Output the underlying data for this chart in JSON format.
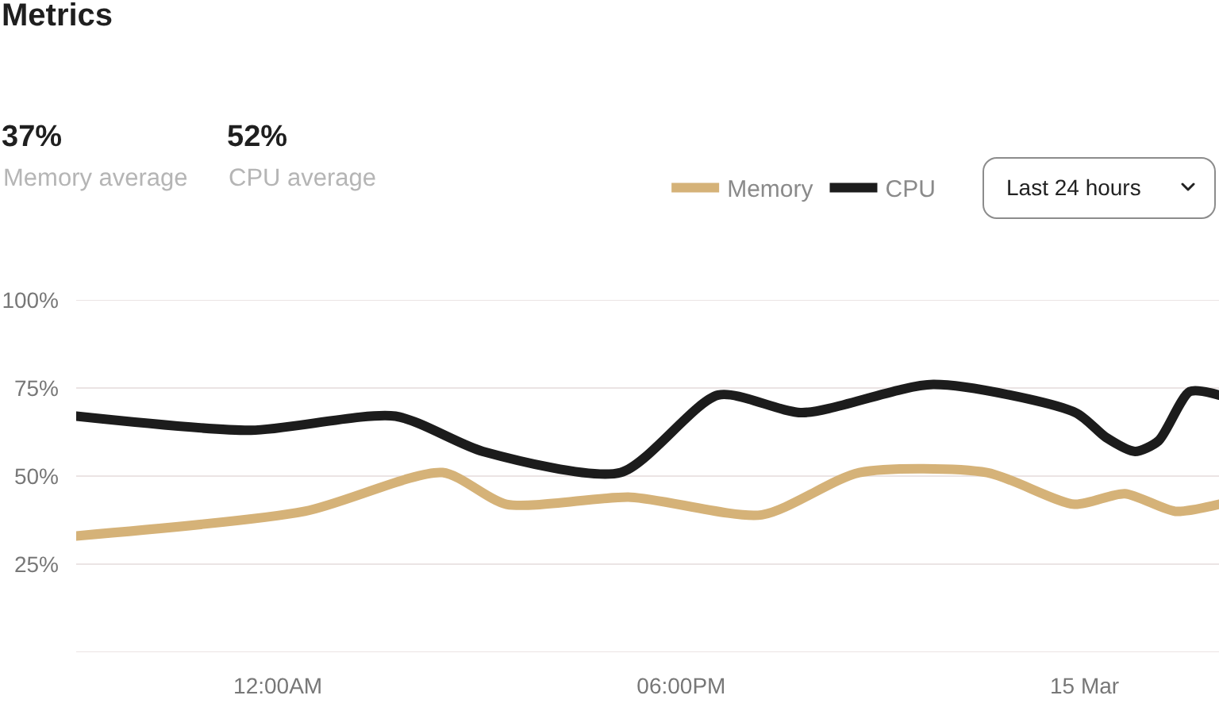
{
  "chart_data": {
    "type": "line",
    "title": "Metrics",
    "annotations": [
      "37%",
      "Memory average",
      "52%",
      "CPU average",
      "Last 24 hours"
    ],
    "series": [
      {
        "name": "Memory",
        "color": "#d5b278",
        "x": [
          -9,
          1.2,
          7.35,
          10.2,
          15.75,
          21.6,
          25.95,
          31.65,
          35.55,
          37.8,
          40.05,
          42
        ],
        "values": [
          33,
          40,
          51,
          42,
          44,
          39,
          51,
          51,
          42,
          45,
          40,
          42
        ]
      },
      {
        "name": "CPU",
        "color": "#1c1c1c",
        "x": [
          -9,
          -1.2,
          5.25,
          9.15,
          15.3,
          19.65,
          23.4,
          29.25,
          35.6,
          36.95,
          38.25,
          39.3,
          40.7,
          42
        ],
        "values": [
          67,
          63,
          67,
          57,
          51,
          73,
          68,
          76,
          68,
          61,
          57,
          60,
          74,
          73
        ]
      }
    ],
    "xlim": [
      -9,
      42
    ],
    "xticks": [
      {
        "value": 0,
        "label": "12:00AM"
      },
      {
        "value": 18,
        "label": "06:00PM"
      },
      {
        "value": 36,
        "label": "15 Mar"
      }
    ],
    "ylim": [
      0,
      100
    ],
    "yticks": [
      {
        "value": 0,
        "label": null
      },
      {
        "value": 25,
        "label": "25%"
      },
      {
        "value": 50,
        "label": "50%"
      },
      {
        "value": 75,
        "label": "75%"
      },
      {
        "value": 100,
        "label": "100%"
      }
    ],
    "grid": "y",
    "legend": "top right"
  }
}
